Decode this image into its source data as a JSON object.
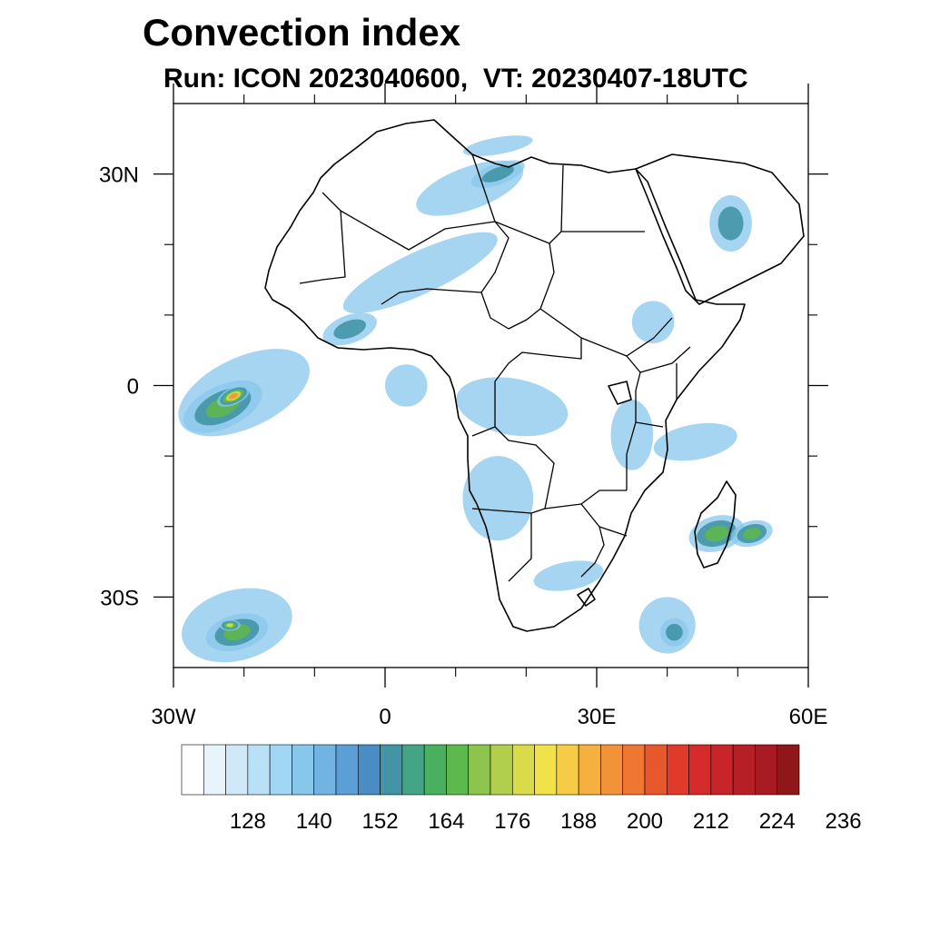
{
  "title": "Convection index",
  "subtitle": "Run: ICON 2023040600,  VT: 20230407-18UTC",
  "map": {
    "extent": {
      "lon": [
        -30,
        60
      ],
      "lat": [
        -40,
        40
      ]
    },
    "lon_ticks": [
      {
        "value": -30,
        "label": "30W"
      },
      {
        "value": 0,
        "label": "0"
      },
      {
        "value": 30,
        "label": "30E"
      },
      {
        "value": 60,
        "label": "60E"
      }
    ],
    "lat_ticks": [
      {
        "value": 30,
        "label": "30N"
      },
      {
        "value": 0,
        "label": "0"
      },
      {
        "value": -30,
        "label": "30S"
      }
    ],
    "minor_lon_ticks": [
      -20,
      -10,
      10,
      20,
      40,
      50
    ],
    "minor_lat_ticks": [
      20,
      10,
      -10,
      -20
    ],
    "convection_cells": [
      {
        "name": "equatorial-atlantic",
        "lon": -20,
        "lat": -1,
        "rlon": 10,
        "rlat": 5,
        "level": 1,
        "rot": -25
      },
      {
        "name": "equatorial-atlantic-core",
        "lon": -23,
        "lat": -3,
        "rlon": 6,
        "rlat": 3,
        "level": 3,
        "rot": -25
      },
      {
        "name": "equatorial-atlantic-peak",
        "lon": -21.5,
        "lat": -1.5,
        "rlon": 2.5,
        "rlat": 1.2,
        "level": 5,
        "rot": -25
      },
      {
        "name": "south-atlantic",
        "lon": -21,
        "lat": -34,
        "rlon": 8,
        "rlat": 5,
        "level": 1,
        "rot": -15
      },
      {
        "name": "south-atlantic-core",
        "lon": -21,
        "lat": -35,
        "rlon": 4.5,
        "rlat": 2.5,
        "level": 3,
        "rot": -15
      },
      {
        "name": "south-atlantic-peak",
        "lon": -22,
        "lat": -34,
        "rlon": 1.5,
        "rlat": 0.8,
        "level": 4,
        "rot": 0
      },
      {
        "name": "sahara-north",
        "lon": 12,
        "lat": 28,
        "rlon": 8,
        "rlat": 3,
        "level": 1,
        "rot": -20
      },
      {
        "name": "sahara-north-core",
        "lon": 16,
        "lat": 30,
        "rlon": 4,
        "rlat": 1.5,
        "level": 2,
        "rot": -20
      },
      {
        "name": "mediterranean-coast",
        "lon": 16,
        "lat": 34,
        "rlon": 5,
        "rlat": 1.2,
        "level": 1,
        "rot": -10
      },
      {
        "name": "sahel-band",
        "lon": 5,
        "lat": 16,
        "rlon": 12,
        "rlat": 3,
        "level": 1,
        "rot": -25
      },
      {
        "name": "west-africa-coast",
        "lon": -5,
        "lat": 8,
        "rlon": 4,
        "rlat": 2,
        "level": 2,
        "rot": -20
      },
      {
        "name": "gulf-of-guinea",
        "lon": 3,
        "lat": 0,
        "rlon": 3,
        "rlat": 3,
        "level": 1,
        "rot": 0
      },
      {
        "name": "congo",
        "lon": 18,
        "lat": -3,
        "rlon": 8,
        "rlat": 4,
        "level": 1,
        "rot": 10
      },
      {
        "name": "angola",
        "lon": 16,
        "lat": -16,
        "rlon": 5,
        "rlat": 6,
        "level": 1,
        "rot": 0
      },
      {
        "name": "ethiopia",
        "lon": 38,
        "lat": 9,
        "rlon": 3,
        "rlat": 3,
        "level": 1,
        "rot": 0
      },
      {
        "name": "arabia",
        "lon": 49,
        "lat": 23,
        "rlon": 3,
        "rlat": 4,
        "level": 2,
        "rot": 0
      },
      {
        "name": "east-africa",
        "lon": 35,
        "lat": -7,
        "rlon": 3,
        "rlat": 5,
        "level": 1,
        "rot": 0
      },
      {
        "name": "tanzania-coast",
        "lon": 44,
        "lat": -8,
        "rlon": 6,
        "rlat": 2.5,
        "level": 1,
        "rot": -10
      },
      {
        "name": "madagascar",
        "lon": 47,
        "lat": -21,
        "rlon": 4,
        "rlat": 2.5,
        "level": 3,
        "rot": -15
      },
      {
        "name": "madagascar-east",
        "lon": 52,
        "lat": -21,
        "rlon": 3,
        "rlat": 1.8,
        "level": 3,
        "rot": -15
      },
      {
        "name": "southeast-ocean",
        "lon": 40,
        "lat": -34,
        "rlon": 4,
        "rlat": 4,
        "level": 1,
        "rot": -30
      },
      {
        "name": "southeast-ocean-core",
        "lon": 41,
        "lat": -35,
        "rlon": 2,
        "rlat": 2,
        "level": 2,
        "rot": -30
      },
      {
        "name": "south-africa",
        "lon": 26,
        "lat": -27,
        "rlon": 5,
        "rlat": 2,
        "level": 1,
        "rot": -10
      }
    ]
  },
  "colorbar": {
    "colors": [
      "#ffffff",
      "#e8f4fb",
      "#cfe9f8",
      "#b8e0f6",
      "#a1d6f4",
      "#88c7ec",
      "#71b4e3",
      "#5c9fd6",
      "#4a8cc4",
      "#4395a6",
      "#44a486",
      "#4ab060",
      "#5db84e",
      "#8cc44d",
      "#b1cf4c",
      "#d8db4a",
      "#f2e24a",
      "#f7cb45",
      "#f6b03f",
      "#f39339",
      "#ef7633",
      "#e8582d",
      "#e03b2a",
      "#d52b2a",
      "#c72529",
      "#b71f27",
      "#a81b23",
      "#8f1619"
    ],
    "labels": [
      "128",
      "140",
      "152",
      "164",
      "176",
      "188",
      "200",
      "212",
      "224",
      "236"
    ],
    "label_start_index": 2,
    "label_every": 3
  }
}
